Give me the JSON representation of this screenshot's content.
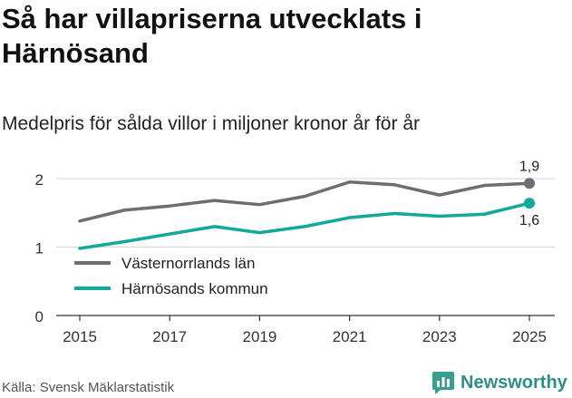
{
  "title": "Så har villapriserna utvecklats i Härnösand",
  "subtitle": "Medelpris för sålda villor i miljoner kronor år för år",
  "source": "Källa: Svensk Mäklarstatistik",
  "brand": {
    "name": "Newsworthy",
    "icon": "newsworthy-logo-icon",
    "color": "#3a9e8f"
  },
  "chart_data": {
    "type": "line",
    "x": [
      2015,
      2016,
      2017,
      2018,
      2019,
      2020,
      2021,
      2022,
      2023,
      2024,
      2025
    ],
    "xticks": [
      "2015",
      "2017",
      "2019",
      "2021",
      "2023",
      "2025"
    ],
    "yticks": [
      "0",
      "1",
      "2"
    ],
    "ylim": [
      0,
      2.2
    ],
    "xlim": [
      2015,
      2025
    ],
    "grid": true,
    "legend": "left",
    "series": [
      {
        "name": "Västernorrlands län",
        "color": "#6e6d73",
        "values": [
          1.38,
          1.54,
          1.6,
          1.68,
          1.62,
          1.74,
          1.95,
          1.91,
          1.76,
          1.9,
          1.93
        ],
        "end_label": "1,9"
      },
      {
        "name": "Härnösands kommun",
        "color": "#12a89a",
        "values": [
          0.98,
          1.08,
          1.19,
          1.3,
          1.21,
          1.3,
          1.43,
          1.49,
          1.45,
          1.48,
          1.64
        ],
        "end_label": "1,6"
      }
    ]
  }
}
